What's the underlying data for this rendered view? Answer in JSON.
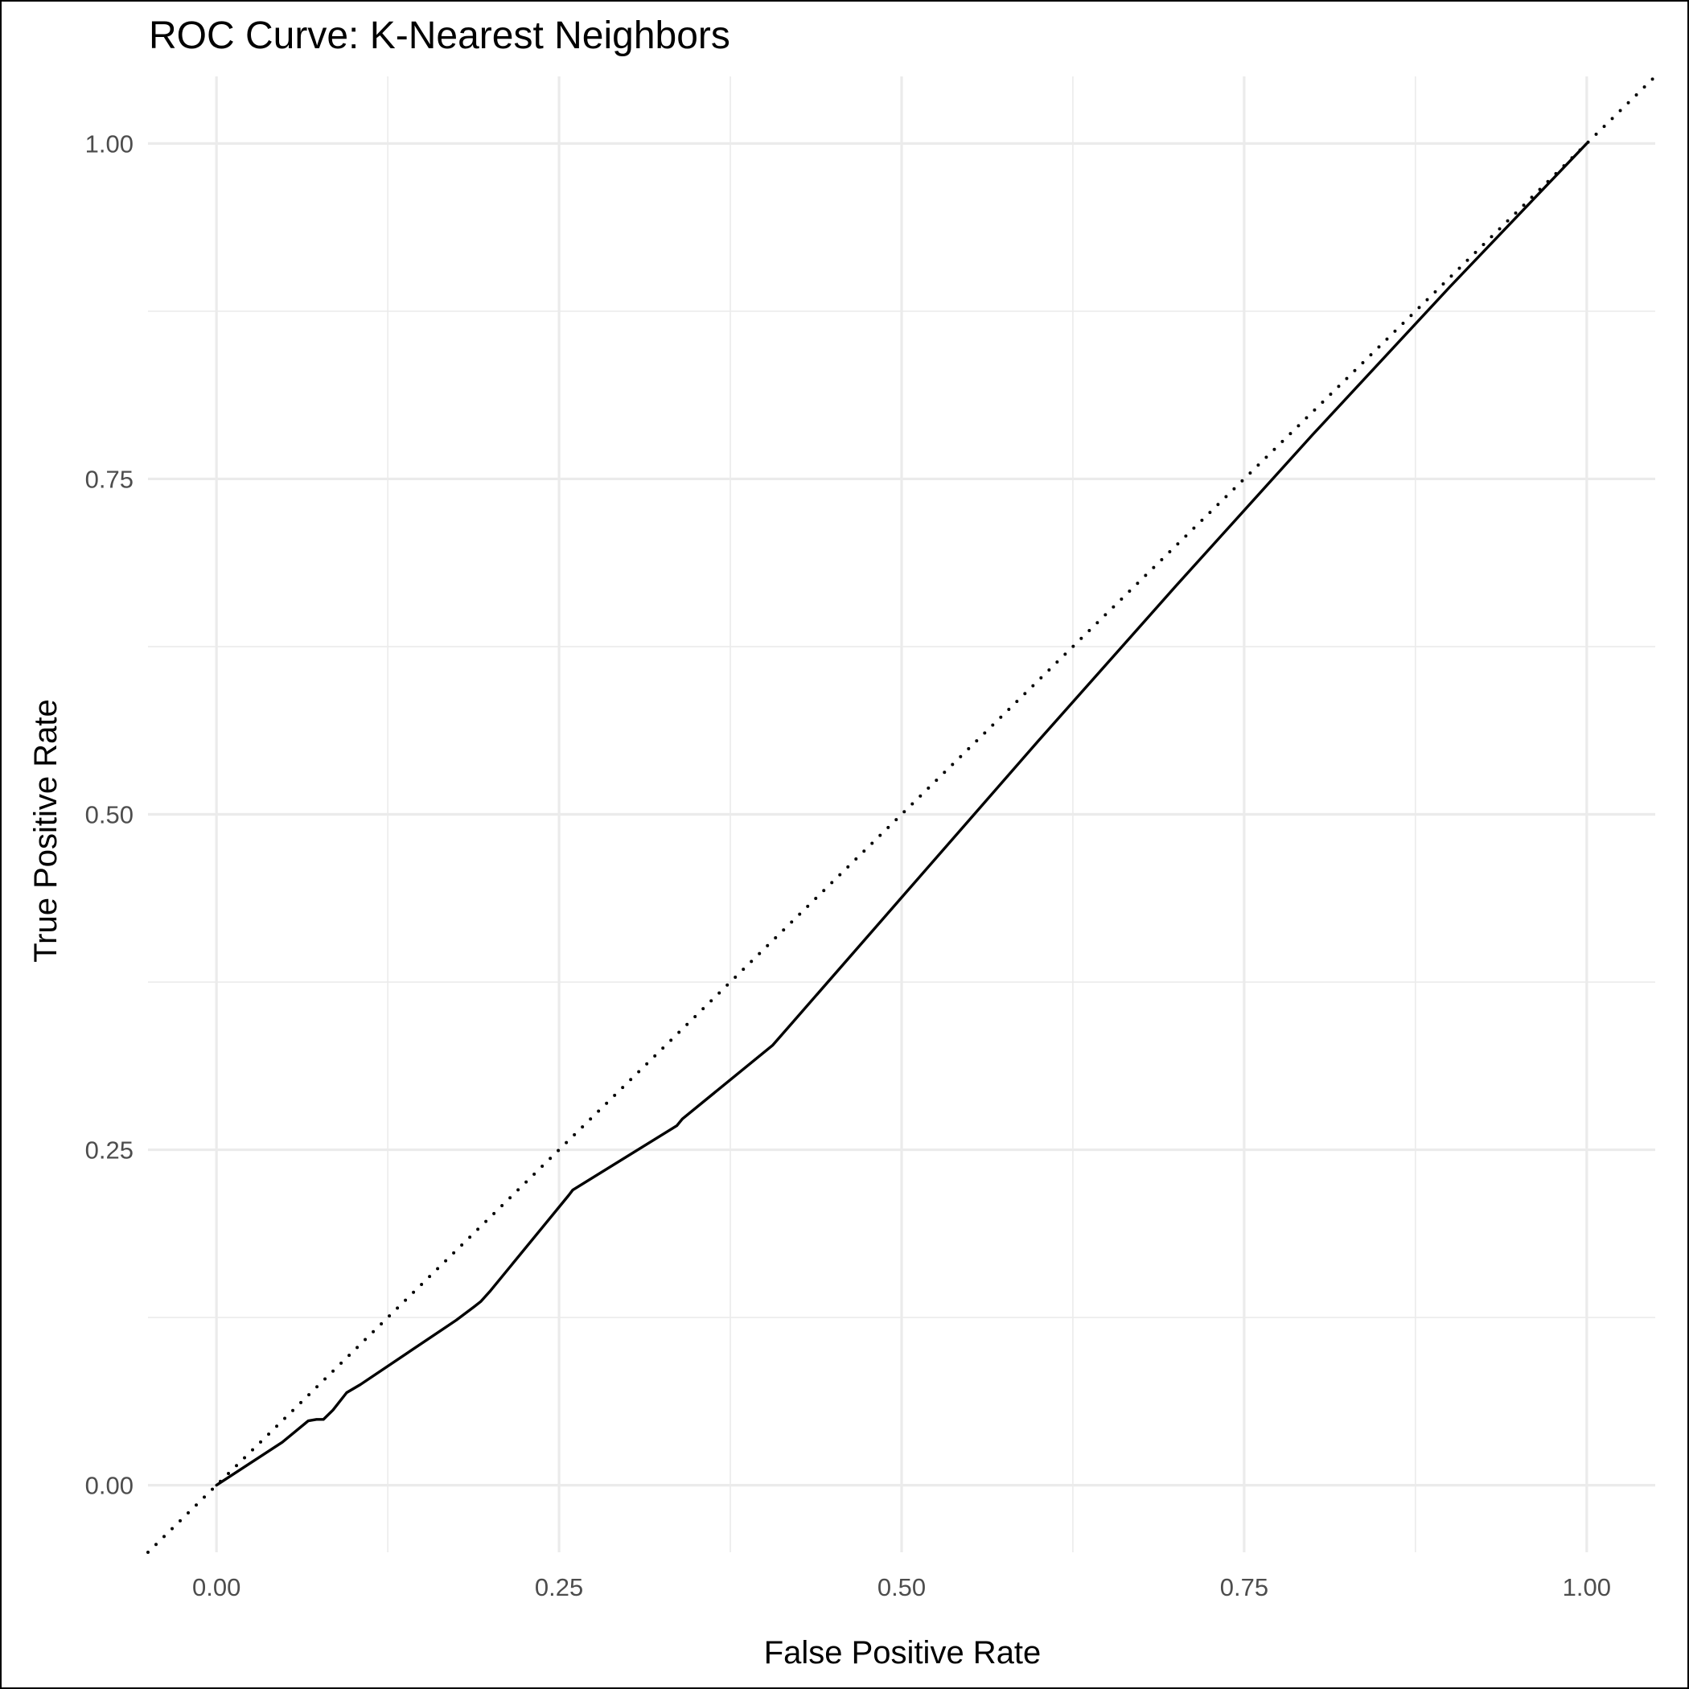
{
  "chart_data": {
    "type": "line",
    "title": "ROC Curve: K-Nearest Neighbors",
    "xlabel": "False Positive Rate",
    "ylabel": "True Positive Rate",
    "xlim": [
      -0.05,
      1.05
    ],
    "ylim": [
      -0.05,
      1.05
    ],
    "x_ticks": [
      "0.00",
      "0.25",
      "0.50",
      "0.75",
      "1.00"
    ],
    "y_ticks": [
      "0.00",
      "0.25",
      "0.50",
      "0.75",
      "1.00"
    ],
    "grid": true,
    "legend": "none",
    "series": [
      {
        "style": "solid",
        "color": "#000000",
        "x": [
          0.0,
          0.048,
          0.067,
          0.073,
          0.078,
          0.085,
          0.095,
          0.105,
          0.175,
          0.188,
          0.193,
          0.2,
          0.257,
          0.26,
          0.336,
          0.34,
          0.406,
          0.5,
          0.6,
          0.7,
          0.8,
          0.9,
          1.0
        ],
        "y": [
          0.0,
          0.032,
          0.048,
          0.049,
          0.049,
          0.056,
          0.069,
          0.075,
          0.123,
          0.133,
          0.137,
          0.145,
          0.216,
          0.22,
          0.268,
          0.273,
          0.328,
          0.438,
          0.555,
          0.67,
          0.783,
          0.893,
          1.0
        ]
      },
      {
        "style": "dotted",
        "color": "#000000",
        "x": [
          -0.05,
          1.05
        ],
        "y": [
          -0.05,
          1.05
        ]
      }
    ]
  }
}
